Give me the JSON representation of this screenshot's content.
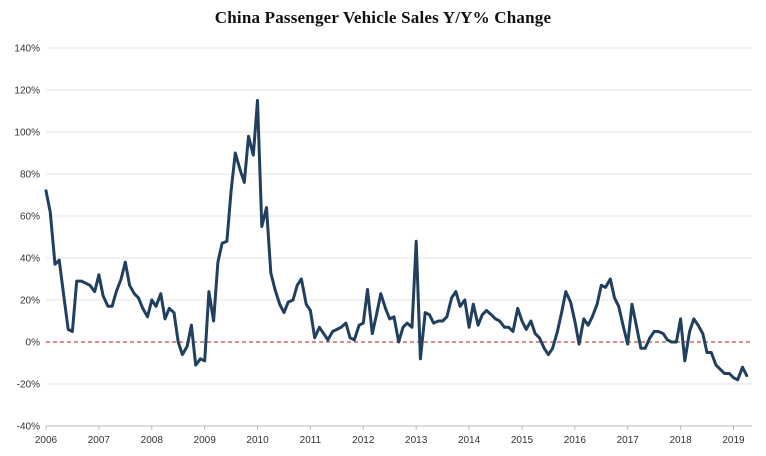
{
  "chart_data": {
    "type": "line",
    "title": "China Passenger Vehicle Sales Y/Y% Change",
    "xlabel": "",
    "ylabel": "",
    "ylim": [
      -40,
      140
    ],
    "y_ticks": [
      "140%",
      "120%",
      "100%",
      "80%",
      "60%",
      "40%",
      "20%",
      "0%",
      "-20%",
      "-40%"
    ],
    "y_tick_values": [
      140,
      120,
      100,
      80,
      60,
      40,
      20,
      0,
      -20,
      -40
    ],
    "x_ticks": [
      "2006",
      "2007",
      "2008",
      "2009",
      "2010",
      "2011",
      "2012",
      "2013",
      "2014",
      "2015",
      "2016",
      "2017",
      "2018",
      "2019"
    ],
    "x_tick_values": [
      2006,
      2007,
      2008,
      2009,
      2010,
      2011,
      2012,
      2013,
      2014,
      2015,
      2016,
      2017,
      2018,
      2019
    ],
    "xlim": [
      2006,
      2019.35
    ],
    "grid": true,
    "zero_line": {
      "y": 0,
      "style": "dashed",
      "color": "#b01e1e"
    },
    "colors": {
      "line": "#213f5e",
      "grid": "#e4e4e4",
      "axis": "#bbbbbb"
    },
    "series": [
      {
        "x": [
          2006.0,
          2006.08,
          2006.17,
          2006.25,
          2006.33,
          2006.42,
          2006.5,
          2006.58,
          2006.67,
          2006.75,
          2006.83,
          2006.92,
          2007.0,
          2007.08,
          2007.17,
          2007.25,
          2007.33,
          2007.42,
          2007.5,
          2007.58,
          2007.67,
          2007.75,
          2007.83,
          2007.92,
          2008.0,
          2008.08,
          2008.17,
          2008.25,
          2008.33,
          2008.42,
          2008.5,
          2008.58,
          2008.67,
          2008.75,
          2008.83,
          2008.92,
          2009.0,
          2009.08,
          2009.17,
          2009.25,
          2009.33,
          2009.42,
          2009.5,
          2009.58,
          2009.67,
          2009.75,
          2009.83,
          2009.92,
          2010.0,
          2010.08,
          2010.17,
          2010.25,
          2010.33,
          2010.42,
          2010.5,
          2010.58,
          2010.67,
          2010.75,
          2010.83,
          2010.92,
          2011.0,
          2011.08,
          2011.17,
          2011.25,
          2011.33,
          2011.42,
          2011.5,
          2011.58,
          2011.67,
          2011.75,
          2011.83,
          2011.92,
          2012.0,
          2012.08,
          2012.17,
          2012.25,
          2012.33,
          2012.42,
          2012.5,
          2012.58,
          2012.67,
          2012.75,
          2012.83,
          2012.92,
          2013.0,
          2013.08,
          2013.17,
          2013.25,
          2013.33,
          2013.42,
          2013.5,
          2013.58,
          2013.67,
          2013.75,
          2013.83,
          2013.92,
          2014.0,
          2014.08,
          2014.17,
          2014.25,
          2014.33,
          2014.42,
          2014.5,
          2014.58,
          2014.67,
          2014.75,
          2014.83,
          2014.92,
          2015.0,
          2015.08,
          2015.17,
          2015.25,
          2015.33,
          2015.42,
          2015.5,
          2015.58,
          2015.67,
          2015.75,
          2015.83,
          2015.92,
          2016.0,
          2016.08,
          2016.17,
          2016.25,
          2016.33,
          2016.42,
          2016.5,
          2016.58,
          2016.67,
          2016.75,
          2016.83,
          2016.92,
          2017.0,
          2017.08,
          2017.17,
          2017.25,
          2017.33,
          2017.42,
          2017.5,
          2017.58,
          2017.67,
          2017.75,
          2017.83,
          2017.92,
          2018.0,
          2018.08,
          2018.17,
          2018.25,
          2018.33,
          2018.42,
          2018.5,
          2018.58,
          2018.67,
          2018.75,
          2018.83,
          2018.92,
          2019.0,
          2019.08,
          2019.17,
          2019.25
        ],
        "values": [
          72,
          62,
          37,
          39,
          23,
          6,
          5,
          29,
          29,
          28,
          27,
          24,
          32,
          22,
          17,
          17,
          24,
          30,
          38,
          27,
          23,
          21,
          16,
          12,
          20,
          17,
          23,
          11,
          16,
          14,
          0,
          -6,
          -2,
          8,
          -11,
          -8,
          -9,
          24,
          10,
          38,
          47,
          48,
          72,
          90,
          82,
          76,
          98,
          89,
          115,
          55,
          64,
          33,
          25,
          18,
          14,
          19,
          20,
          27,
          30,
          18,
          15,
          2,
          7,
          4,
          1,
          5,
          6,
          7,
          9,
          2,
          1,
          8,
          9,
          25,
          4,
          13,
          23,
          16,
          11,
          12,
          0,
          7,
          9,
          7,
          48,
          -8,
          14,
          13,
          9,
          10,
          10,
          12,
          21,
          24,
          17,
          20,
          7,
          18,
          8,
          13,
          15,
          13,
          11,
          10,
          7,
          7,
          5,
          16,
          10,
          6,
          10,
          4,
          2,
          -3,
          -6,
          -3,
          5,
          14,
          24,
          19,
          10,
          -1,
          11,
          8,
          12,
          18,
          27,
          26,
          30,
          21,
          17,
          7,
          -1,
          18,
          7,
          -3,
          -3,
          2,
          5,
          5,
          4,
          1,
          0,
          0,
          11,
          -9,
          5,
          11,
          8,
          4,
          -5,
          -5,
          -11,
          -13,
          -15,
          -15,
          -17,
          -18,
          -12,
          -16
        ]
      }
    ]
  }
}
